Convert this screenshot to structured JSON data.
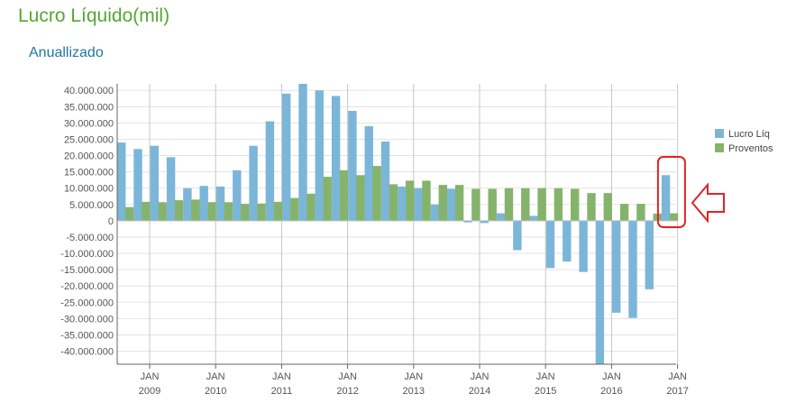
{
  "header": {
    "title": "Lucro Líquido(mil)",
    "subtitle": "Anuallizado"
  },
  "chart_data": {
    "type": "bar",
    "title": "Lucro Líquido(mil)",
    "subtitle": "Anuallizado",
    "xlabel": "",
    "ylabel": "",
    "ylim": [
      -44000000,
      42000000
    ],
    "y_ticks": [
      40000000,
      35000000,
      30000000,
      25000000,
      20000000,
      15000000,
      10000000,
      5000000,
      0,
      -5000000,
      -10000000,
      -15000000,
      -20000000,
      -25000000,
      -30000000,
      -35000000,
      -40000000
    ],
    "y_tick_labels": [
      "40.000.000",
      "35.000.000",
      "30.000.000",
      "25.000.000",
      "20.000.000",
      "15.000.000",
      "10.000.000",
      "5.000.000",
      "0",
      "-5.000.000",
      "-10.000.000",
      "-15.000.000",
      "-20.000.000",
      "-25.000.000",
      "-30.000.000",
      "-35.000.000",
      "-40.000.000"
    ],
    "x_ticks": [
      {
        "month": "JAN",
        "year": "2009"
      },
      {
        "month": "JAN",
        "year": "2010"
      },
      {
        "month": "JAN",
        "year": "2011"
      },
      {
        "month": "JAN",
        "year": "2012"
      },
      {
        "month": "JAN",
        "year": "2013"
      },
      {
        "month": "JAN",
        "year": "2014"
      },
      {
        "month": "JAN",
        "year": "2015"
      },
      {
        "month": "JAN",
        "year": "2016"
      },
      {
        "month": "JAN",
        "year": "2017"
      }
    ],
    "grid": true,
    "legend_position": "right",
    "annotation": "red rounded box and left-pointing arrow highlighting the last quarter",
    "series": [
      {
        "name": "Lucro Líq",
        "color": "#7bb6d9",
        "values": [
          24000000,
          22000000,
          23000000,
          19500000,
          10000000,
          10700000,
          10500000,
          15500000,
          23000000,
          30500000,
          39000000,
          42000000,
          40000000,
          38300000,
          33700000,
          29000000,
          24300000,
          10500000,
          10000000,
          5000000,
          9800000,
          -500000,
          -700000,
          2300000,
          -9000000,
          1500000,
          -14500000,
          -12500000,
          -15700000,
          -44000000,
          -28200000,
          -29800000,
          -21000000,
          14000000
        ]
      },
      {
        "name": "Proventos",
        "color": "#86b36b",
        "values": [
          4200000,
          5800000,
          5700000,
          6300000,
          6500000,
          5700000,
          5700000,
          5200000,
          5300000,
          5800000,
          7000000,
          8300000,
          13500000,
          15500000,
          14000000,
          16800000,
          11200000,
          12300000,
          12300000,
          11000000,
          11000000,
          9800000,
          9800000,
          10000000,
          10000000,
          10000000,
          10000000,
          9800000,
          8500000,
          8500000,
          5200000,
          5200000,
          2200000,
          2300000
        ]
      }
    ]
  }
}
